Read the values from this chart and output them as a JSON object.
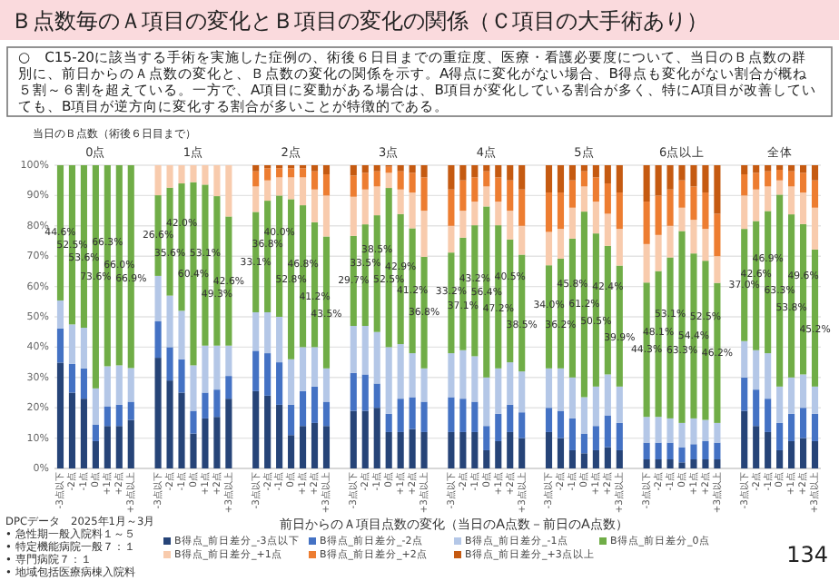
{
  "chart_data": {
    "type": "bar",
    "stacked": true,
    "title": "Ｂ点数毎のＡ項目の変化とＢ項目の変化の関係（Ｃ項目の大手術あり）",
    "subtitle": "○　C15-20に該当する手術を実施した症例の、術後６日目までの重症度、医療・看護必要度について、当日のＢ点数の群別に、前日からのＡ点数の変化と、Ｂ点数の変化の関係を示す。A得点に変化がない場合、B得点も変化がない割合が概ね５割～６割を超えている。一方で、A項目に変動がある場合は、B項目が変化している割合が多く、特にA項目が改善していても、B項目が逆方向に変化する割合が多いことが特徴的である。",
    "xlabel": "前日からのＡ項目点数の変化（当日のA点数－前日のA点数）",
    "annotations": [
      "当日のＢ点数（術後６日目まで）",
      "0点",
      "1点",
      "2点",
      "3点",
      "4点",
      "5点",
      "6点以上",
      "全体",
      "DPCデータ　2025年1月～3月",
      "• 急性期一般入院料１～５",
      "• 特定機能病院一般７：１",
      "• 専門病院７：１",
      "• 地域包括医療病棟入院料",
      "134"
    ],
    "categories": [
      "-3点以下",
      "-2点",
      "-1点",
      "0点",
      "+1点",
      "+2点",
      "+3点以上",
      "-3点以下",
      "-2点",
      "-1点",
      "0点",
      "+1点",
      "+2点",
      "+3点以上",
      "-3点以下",
      "-2点",
      "-1点",
      "0点",
      "+1点",
      "+2点",
      "+3点以上",
      "-3点以下",
      "-2点",
      "-1点",
      "0点",
      "+1点",
      "+2点",
      "+3点以上",
      "-3点以下",
      "-2点",
      "-1点",
      "0点",
      "+1点",
      "+2点",
      "+3点以上",
      "-3点以下",
      "-2点",
      "-1点",
      "0点",
      "+1点",
      "+2点",
      "+3点以上",
      "-3点以下",
      "-2点",
      "-1点",
      "0点",
      "+1点",
      "+2点",
      "+3点以上",
      "-3点以下",
      "-2点",
      "-1点",
      "0点",
      "+1点",
      "+2点",
      "+3点以上"
    ],
    "ylim": [
      0,
      100
    ],
    "yticks": [
      {
        "value": 0,
        "label": "0%"
      },
      {
        "value": 10,
        "label": "10%"
      },
      {
        "value": 20,
        "label": "20%"
      },
      {
        "value": 30,
        "label": "30%"
      },
      {
        "value": 40,
        "label": "40%"
      },
      {
        "value": 50,
        "label": "50%"
      },
      {
        "value": 60,
        "label": "60%"
      },
      {
        "value": 70,
        "label": "70%"
      },
      {
        "value": 80,
        "label": "80%"
      },
      {
        "value": 90,
        "label": "90%"
      },
      {
        "value": 100,
        "label": "100%"
      }
    ],
    "grid": "y",
    "legend": "bottom",
    "series": [
      {
        "name": "B得点_前日差分_-3点以下",
        "color": "#264478",
        "values": [
          34.9,
          25,
          23,
          9,
          14,
          14,
          16,
          36.5,
          29,
          25,
          11.5,
          16.5,
          17,
          23,
          25.5,
          24,
          21,
          11,
          14,
          15,
          14,
          19,
          19,
          20,
          12,
          12,
          13,
          12,
          12,
          12,
          12,
          6,
          9,
          12,
          10,
          12,
          10,
          6,
          5,
          6,
          7,
          6,
          3,
          3,
          3,
          2,
          3,
          3,
          3,
          19,
          14,
          12,
          6,
          9,
          10,
          9
        ]
      },
      {
        "name": "B得点_前日差分_-2点",
        "color": "#4472c4",
        "values": [
          11.3,
          9.5,
          10,
          5.5,
          6.5,
          7,
          6,
          12,
          11,
          11,
          7.5,
          8.5,
          9,
          7.5,
          13.3,
          14,
          14,
          10,
          11.5,
          12,
          8,
          12.5,
          12,
          8,
          6,
          11,
          10.5,
          10,
          11.5,
          11,
          10,
          8,
          9,
          9,
          8.5,
          8,
          9,
          10.5,
          6.5,
          8,
          10.5,
          9,
          5.5,
          5.5,
          5.5,
          5,
          5,
          6,
          5.5,
          11,
          12,
          11,
          9,
          9,
          10,
          9
        ]
      },
      {
        "name": "B得点_前日差分_-1点",
        "color": "#b4c7e7",
        "values": [
          9.2,
          13,
          13.4,
          11.9,
          13.2,
          13,
          11.1,
          15,
          17,
          16,
          15,
          15.5,
          14.5,
          10,
          12.7,
          13.5,
          15,
          15,
          14.5,
          13,
          11,
          15.5,
          16,
          17,
          22,
          18,
          14.5,
          11,
          14.5,
          16,
          15,
          16,
          15,
          14,
          13.5,
          13,
          14,
          13.5,
          12,
          13,
          13.5,
          12,
          8.5,
          8.5,
          8,
          8,
          8.5,
          7,
          6.5,
          12,
          13,
          15,
          12,
          12,
          11,
          9
        ]
      },
      {
        "name": "B得点_前日差分_0点",
        "color": "#70ad47",
        "values": [
          44.6,
          52.5,
          53.6,
          73.6,
          66.3,
          66.0,
          66.9,
          26.6,
          35.6,
          42.0,
          60.4,
          53.1,
          49.3,
          42.6,
          33.1,
          36.8,
          40.0,
          52.8,
          46.8,
          41.2,
          43.5,
          29.7,
          33.5,
          38.5,
          52.5,
          42.9,
          41.2,
          36.8,
          33.2,
          37.1,
          43.2,
          56.4,
          47.2,
          40.5,
          38.5,
          34.0,
          36.2,
          45.8,
          61.2,
          50.5,
          42.4,
          39.9,
          44.3,
          48.1,
          53.1,
          63.3,
          54.4,
          52.5,
          46.2,
          37.0,
          42.6,
          46.9,
          63.3,
          53.8,
          49.6,
          45.2
        ],
        "value_labels": [
          "44.6%",
          "52.5%",
          "53.6%",
          "73.6%",
          "66.3%",
          "66.0%",
          "66.9%",
          "26.6%",
          "35.6%",
          "42.0%",
          "60.4%",
          "53.1%",
          "49.3%",
          "42.6%",
          "33.1%",
          "36.8%",
          "40.0%",
          "52.8%",
          "46.8%",
          "41.2%",
          "43.5%",
          "29.7%",
          "33.5%",
          "38.5%",
          "52.5%",
          "42.9%",
          "41.2%",
          "36.8%",
          "33.2%",
          "37.1%",
          "43.2%",
          "56.4%",
          "47.2%",
          "40.5%",
          "38.5%",
          "34.0%",
          "36.2%",
          "45.8%",
          "61.2%",
          "50.5%",
          "42.4%",
          "39.9%",
          "44.3%",
          "48.1%",
          "53.1%",
          "63.3%",
          "54.4%",
          "52.5%",
          "46.2%",
          "37.0%",
          "42.6%",
          "46.9%",
          "63.3%",
          "53.8%",
          "49.6%",
          "45.2%"
        ]
      },
      {
        "name": "B得点_前日差分_+1点",
        "color": "#f8cbad",
        "values": [
          0,
          0,
          0,
          0,
          0,
          0,
          0,
          9.9,
          7.4,
          6,
          5.6,
          6.4,
          10.2,
          16.9,
          8.4,
          6.7,
          6,
          7.2,
          9.2,
          10.8,
          13.5,
          12.9,
          11.5,
          9.5,
          5,
          8.1,
          11.8,
          15.2,
          8.8,
          8.9,
          7.8,
          6.6,
          7.8,
          9.5,
          9.5,
          11,
          9.8,
          10.2,
          8.3,
          10.5,
          10.6,
          12.1,
          12.7,
          11.9,
          10.4,
          7.7,
          11.1,
          10.5,
          8.8,
          11,
          10.4,
          8.1,
          4.7,
          9.2,
          10.4,
          13.8
        ]
      },
      {
        "name": "B得点_前日差分_+2点",
        "color": "#ed7d31",
        "values": [
          0,
          0,
          0,
          0,
          0,
          0,
          0,
          0,
          0,
          0,
          0,
          0,
          0,
          0,
          5,
          4,
          3,
          3,
          3,
          6,
          7,
          7,
          5.5,
          5,
          2,
          6,
          6.5,
          11,
          12,
          10,
          8,
          5,
          8,
          10,
          12,
          13,
          12,
          9,
          5,
          8,
          10,
          12,
          14,
          13,
          12,
          9,
          11,
          12,
          14,
          7,
          5.5,
          5,
          3.5,
          5,
          6.5,
          9
        ]
      },
      {
        "name": "B得点_前日差分_+3点以上",
        "color": "#c55a11",
        "values": [
          0,
          0,
          0,
          0,
          0,
          0,
          0,
          0,
          0,
          0,
          0,
          0,
          0,
          0,
          2,
          1,
          1,
          1,
          1,
          2,
          3,
          3.4,
          2.5,
          2,
          0.5,
          2,
          2.5,
          4,
          8,
          5,
          4,
          2,
          4,
          5,
          8,
          9,
          9,
          5,
          2,
          4,
          6,
          9,
          12,
          10,
          8,
          5,
          7,
          9,
          16,
          3,
          2.5,
          2,
          1.5,
          2,
          2.5,
          5
        ]
      }
    ]
  }
}
